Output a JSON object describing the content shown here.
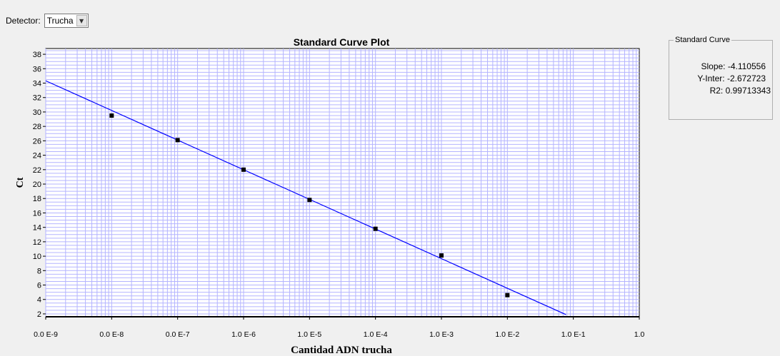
{
  "toolbar": {
    "detector_label": "Detector:",
    "detector_value": "Trucha"
  },
  "side_panel": {
    "title": "Standard Curve",
    "slope_label": "Slope:",
    "slope_value": "-4.110556",
    "yinter_label": "Y-Inter:",
    "yinter_value": "-2.672723",
    "r2_label": "R2:",
    "r2_value": "0.99713343"
  },
  "colors": {
    "plot_bg": "#ffffff",
    "grid": "#b4b4ff",
    "fit_line": "#0000ff",
    "points": "#000000",
    "panel_bg": "#f0f0f0"
  },
  "chart_data": {
    "type": "scatter",
    "title": "Standard Curve Plot",
    "xlabel": "Cantidad ADN trucha",
    "ylabel": "Ct",
    "x_scale": "log",
    "x_exponent_range": [
      -9,
      0
    ],
    "x_tick_labels": [
      "0.0 E-9",
      "0.0 E-8",
      "0.0 E-7",
      "1.0 E-6",
      "1.0 E-5",
      "1.0 E-4",
      "1.0 E-3",
      "1.0 E-2",
      "1.0 E-1",
      "1.0"
    ],
    "y_ticks": [
      2,
      4,
      6,
      8,
      10,
      12,
      14,
      16,
      18,
      20,
      22,
      24,
      26,
      28,
      30,
      32,
      34,
      36,
      38
    ],
    "ylim": [
      1.6,
      38.8
    ],
    "grid": true,
    "points": [
      {
        "x": 1e-08,
        "y": 29.5
      },
      {
        "x": 1e-07,
        "y": 26.1
      },
      {
        "x": 1e-06,
        "y": 22.0
      },
      {
        "x": 1e-05,
        "y": 17.8
      },
      {
        "x": 0.0001,
        "y": 13.8
      },
      {
        "x": 0.001,
        "y": 10.1
      },
      {
        "x": 0.01,
        "y": 4.6
      }
    ],
    "fit_line": {
      "slope": -4.110556,
      "intercept": -2.672723
    }
  }
}
